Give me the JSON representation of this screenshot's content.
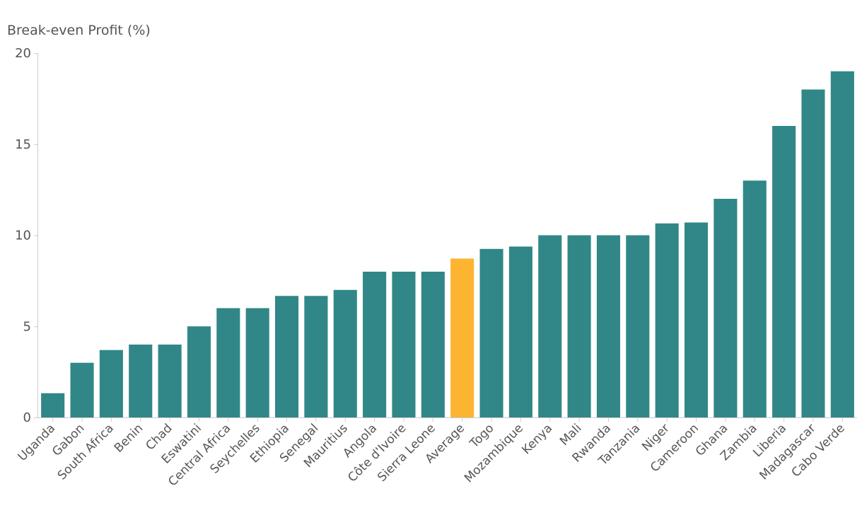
{
  "chart_data": {
    "type": "bar",
    "ylabel": "Break-even Profit (%)",
    "ylim": [
      0,
      20
    ],
    "yticks": [
      0,
      5,
      10,
      15,
      20
    ],
    "grid": false,
    "default_color": "#318787",
    "highlight_color": "#FDB431",
    "highlight_category": "Average",
    "axis_color": "#cccccc",
    "text_color": "#555555",
    "categories": [
      "Uganda",
      "Gabon",
      "South Africa",
      "Benin",
      "Chad",
      "Eswatini",
      "Central Africa",
      "Seychelles",
      "Ethiopia",
      "Senegal",
      "Mauritius",
      "Angola",
      "Côte d'Ivoire",
      "Sierra Leone",
      "Average",
      "Togo",
      "Mozambique",
      "Kenya",
      "Mali",
      "Rwanda",
      "Tanzania",
      "Niger",
      "Cameroon",
      "Ghana",
      "Zambia",
      "Liberia",
      "Madagascar",
      "Cabo Verde"
    ],
    "values": [
      1.33,
      3.0,
      3.7,
      4.0,
      4.0,
      5.0,
      6.0,
      6.0,
      6.67,
      6.67,
      7.0,
      8.0,
      8.0,
      8.0,
      8.72,
      9.25,
      9.38,
      10.0,
      10.0,
      10.0,
      10.0,
      10.65,
      10.7,
      12.0,
      13.0,
      16.0,
      18.0,
      19.0
    ]
  }
}
